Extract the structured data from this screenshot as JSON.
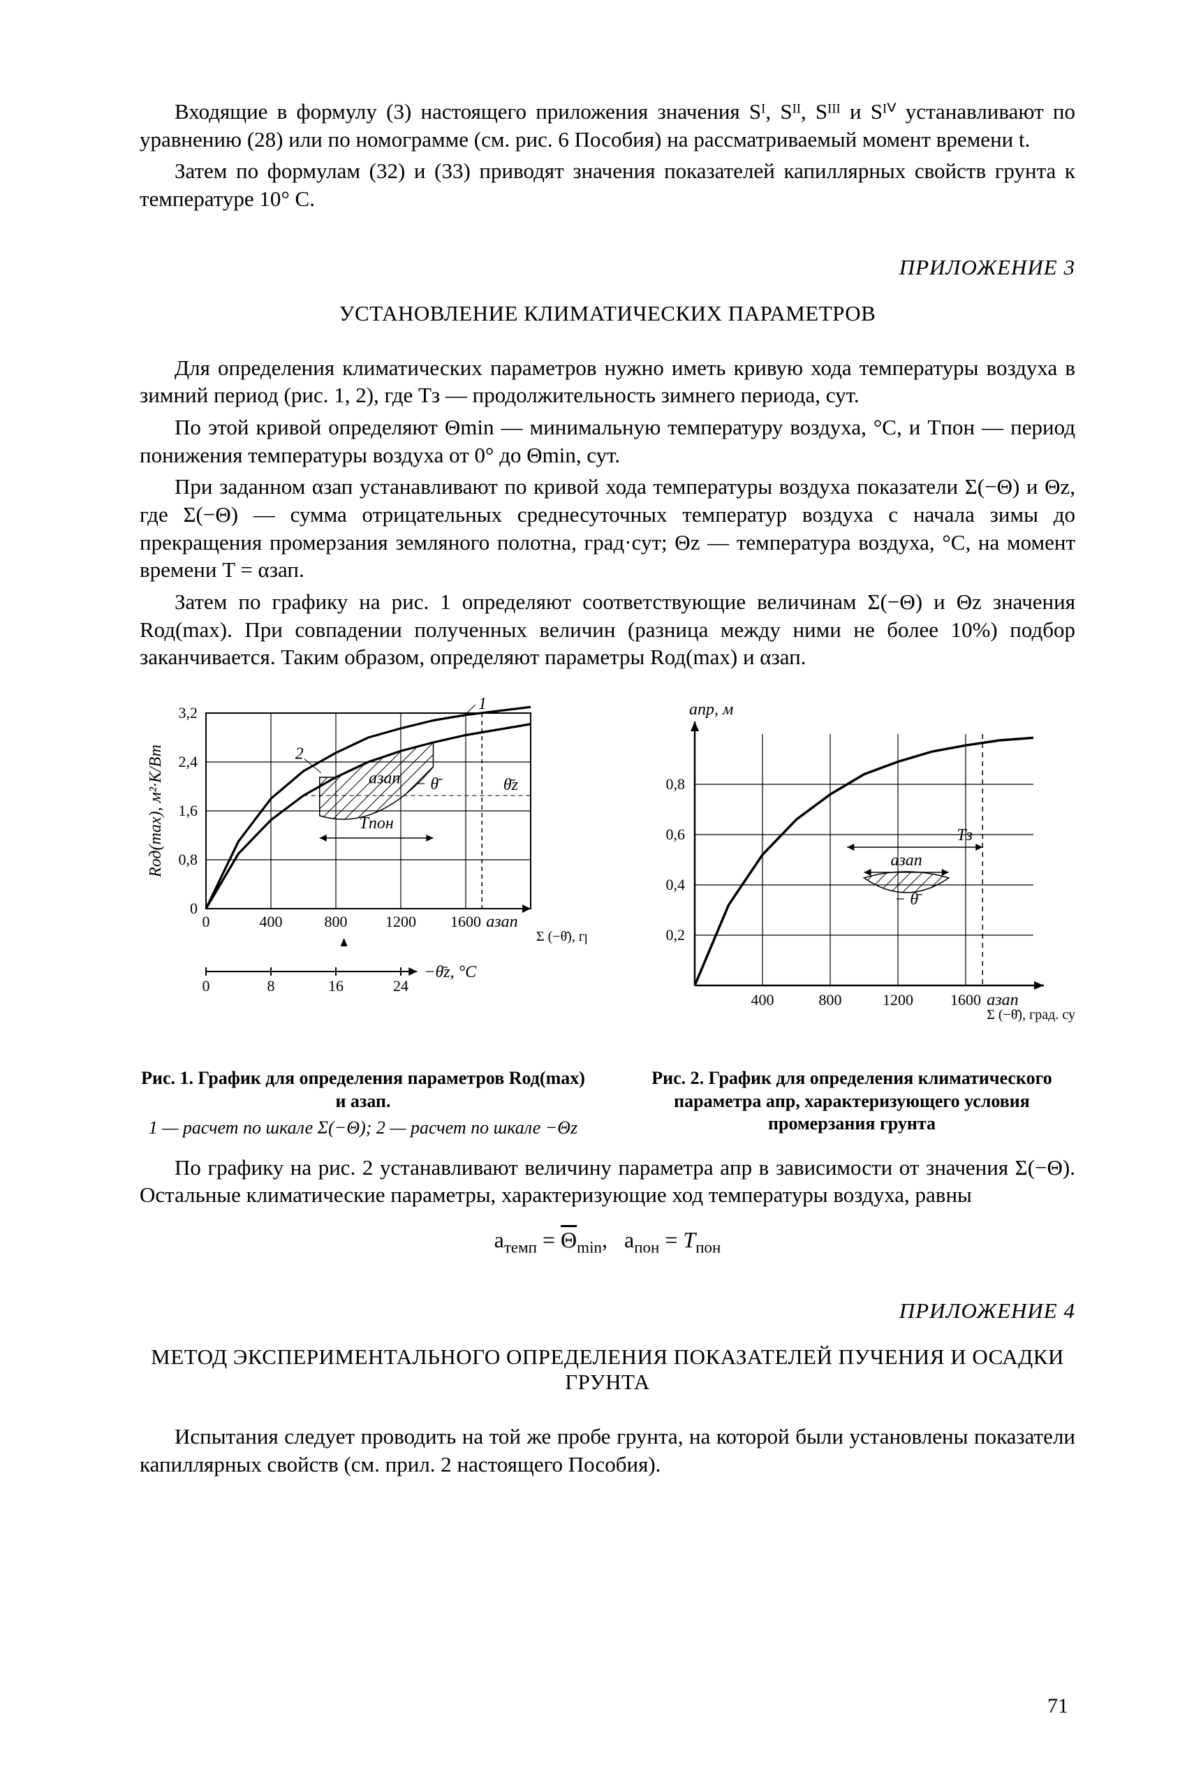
{
  "intro": {
    "p1": "Входящие в формулу (3) настоящего приложения значения Sᴵ, Sᴵᴵ, Sᴵᴵᴵ и Sᴵⱽ устанавливают по уравнению (28) или по номограмме (см. рис. 6 Пособия) на рассматриваемый момент времени t.",
    "p2": "Затем по формулам (32) и (33) приводят значения показателей капиллярных свойств грунта к температуре 10° C."
  },
  "app3": {
    "label": "ПРИЛОЖЕНИЕ 3",
    "title": "УСТАНОВЛЕНИЕ КЛИМАТИЧЕСКИХ ПАРАМЕТРОВ",
    "p1": "Для определения климатических параметров нужно иметь кривую хода температуры воздуха в зимний период (рис. 1, 2), где Tз — продолжительность зимнего периода, сут.",
    "p2": "По этой кривой определяют Θmin — минимальную температуру воздуха, °C, и Tпон — период понижения температуры воздуха от 0° до Θmin, сут.",
    "p3": "При заданном αзап устанавливают по кривой хода температуры воздуха показатели Σ(−Θ) и Θz, где Σ(−Θ) — сумма отрицательных среднесуточных температур воздуха с начала зимы до прекращения промерзания земляного полотна, град·сут; Θz — температура воздуха, °C, на момент времени T = αзап.",
    "p4": "Затем по графику на рис. 1 определяют соответствующие величинам Σ(−Θ) и Θz значения Rод(max). При совпадении полученных величин (разница между ними не более 10%) подбор заканчивается. Таким образом, определяют параметры Rод(max) и αзап.",
    "p5": "По графику на рис. 2 устанавливают величину параметра aпр в зависимости от значения Σ(−Θ). Остальные климатические параметры, характеризующие ход температуры воздуха, равны",
    "equation": "aтемп = Θ̄min,  aпон = Tпон"
  },
  "fig1": {
    "caption_lead": "Рис. 1. График для определения параметров Rод(max) и aзап.",
    "legend": "1 — расчет по шкале Σ(−Θ);   2 — расчет по шкале −Θz",
    "type": "multi-axis-line",
    "x_max": 2000,
    "x_ticks": [
      0,
      400,
      800,
      1200,
      1600
    ],
    "x_label_main": "Σ (−θ̄), град. сут",
    "x2_ticks": [
      0,
      8,
      16,
      24
    ],
    "x2_label": "−θ̄z, °C",
    "y_ticks": [
      0,
      0.8,
      1.6,
      2.4,
      3.2
    ],
    "y_label": "Rод(max), м²·K/Вт",
    "background_color": "#ffffff",
    "grid_color": "#000000",
    "line_width": 3.2,
    "curves": {
      "curve1": [
        [
          0,
          0
        ],
        [
          200,
          1.1
        ],
        [
          400,
          1.8
        ],
        [
          600,
          2.25
        ],
        [
          800,
          2.55
        ],
        [
          1000,
          2.8
        ],
        [
          1200,
          2.95
        ],
        [
          1400,
          3.08
        ],
        [
          1600,
          3.17
        ],
        [
          2000,
          3.3
        ]
      ],
      "curve2": [
        [
          0,
          0
        ],
        [
          200,
          0.9
        ],
        [
          400,
          1.45
        ],
        [
          600,
          1.85
        ],
        [
          800,
          2.15
        ],
        [
          1000,
          2.4
        ],
        [
          1200,
          2.58
        ],
        [
          1400,
          2.72
        ],
        [
          1600,
          2.84
        ],
        [
          2000,
          3.02
        ]
      ]
    },
    "annotations": {
      "a_zap_x": 1700,
      "T_pon_range": [
        700,
        1400
      ],
      "curve_tag_1_at": [
        1600,
        3.18
      ],
      "curve_tag_2_at": [
        700,
        2.2
      ]
    }
  },
  "fig2": {
    "caption_lead": "Рис. 2. График для определения климатического параметра aпр, характеризующего условия промерзания грунта",
    "type": "line",
    "x_max": 2000,
    "x_ticks": [
      400,
      800,
      1200,
      1600
    ],
    "x_label": "Σ (−θ̄), град. сут",
    "y_ticks": [
      0.2,
      0.4,
      0.6,
      0.8
    ],
    "y_top_label": "aпр, м",
    "background_color": "#ffffff",
    "grid_color": "#000000",
    "line_width": 3.5,
    "curve": [
      [
        0,
        0
      ],
      [
        200,
        0.32
      ],
      [
        400,
        0.52
      ],
      [
        600,
        0.66
      ],
      [
        800,
        0.76
      ],
      [
        1000,
        0.84
      ],
      [
        1200,
        0.89
      ],
      [
        1400,
        0.93
      ],
      [
        1600,
        0.955
      ],
      [
        1800,
        0.975
      ],
      [
        2000,
        0.985
      ]
    ],
    "annotations": {
      "a_zap_x": 1700,
      "T_z_range": [
        900,
        1700
      ],
      "a_zap_inner_range": [
        1000,
        1500
      ]
    }
  },
  "app4": {
    "label": "ПРИЛОЖЕНИЕ 4",
    "title": "МЕТОД ЭКСПЕРИМЕНТАЛЬНОГО ОПРЕДЕЛЕНИЯ ПОКАЗАТЕЛЕЙ ПУЧЕНИЯ И ОСАДКИ ГРУНТА",
    "p1": "Испытания следует проводить на той же пробе грунта, на которой были установлены показатели капиллярных свойств (см. прил. 2 настоящего Пособия)."
  },
  "page_number": "71"
}
